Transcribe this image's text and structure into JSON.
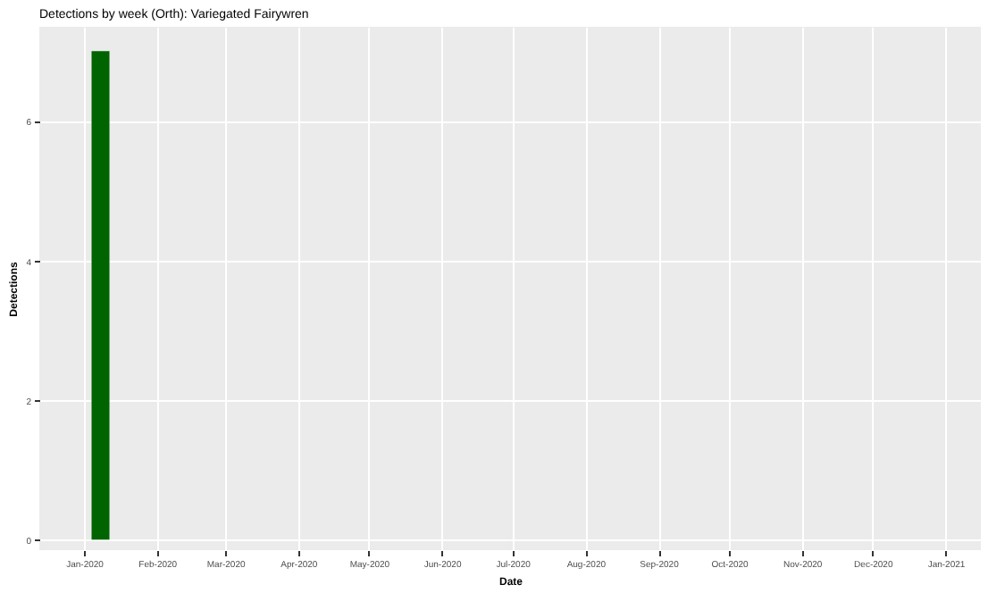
{
  "chart_data": {
    "type": "bar",
    "title": "Detections by week (Orth): Variegated Fairywren",
    "xlabel": "Date",
    "ylabel": "Detections",
    "x": [
      "2020-01-08"
    ],
    "values": [
      7
    ],
    "color": "#006400",
    "xlim": [
      "2019-12-13",
      "2021-01-16"
    ],
    "xticks": [
      {
        "value": "2020-01-01",
        "label": "Jan-2020"
      },
      {
        "value": "2020-02-01",
        "label": "Feb-2020"
      },
      {
        "value": "2020-03-01",
        "label": "Mar-2020"
      },
      {
        "value": "2020-04-01",
        "label": "Apr-2020"
      },
      {
        "value": "2020-05-01",
        "label": "May-2020"
      },
      {
        "value": "2020-06-01",
        "label": "Jun-2020"
      },
      {
        "value": "2020-07-01",
        "label": "Jul-2020"
      },
      {
        "value": "2020-08-01",
        "label": "Aug-2020"
      },
      {
        "value": "2020-09-01",
        "label": "Sep-2020"
      },
      {
        "value": "2020-10-01",
        "label": "Oct-2020"
      },
      {
        "value": "2020-11-01",
        "label": "Nov-2020"
      },
      {
        "value": "2020-12-01",
        "label": "Dec-2020"
      },
      {
        "value": "2021-01-01",
        "label": "Jan-2021"
      }
    ],
    "ylim": [
      -0.15,
      7.35
    ],
    "yticks": [
      0,
      2,
      4,
      6
    ],
    "grid": true
  }
}
